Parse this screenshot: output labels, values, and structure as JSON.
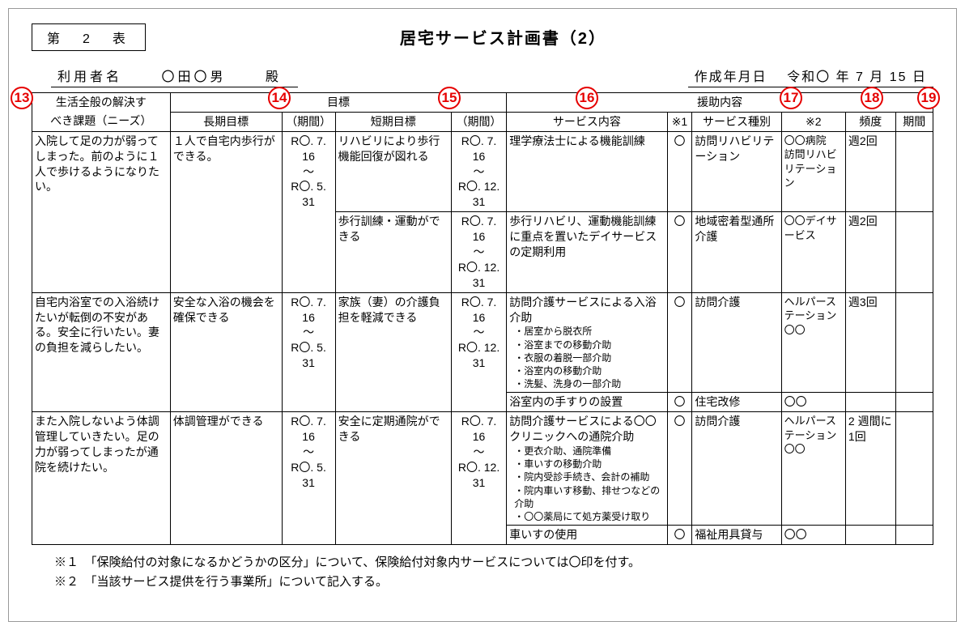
{
  "header": {
    "table_number": "第　2　表",
    "title": "居宅サービス計画書（2）",
    "user_label": "利用者名",
    "user_name": "〇田〇男",
    "honorific": "殿",
    "date_label": "作成年月日",
    "date_value": "令和〇 年 7 月 15 日"
  },
  "cols": {
    "needs_l1": "生活全般の解決す",
    "needs_l2": "べき課題（ニーズ）",
    "goals": "目標",
    "long_goal": "長期目標",
    "period": "（期間）",
    "short_goal": "短期目標",
    "assist": "援助内容",
    "svc_content": "サービス内容",
    "m1": "※1",
    "svc_kind": "サービス種別",
    "m2": "※2",
    "freq": "頻度",
    "term": "期間"
  },
  "periods": {
    "long": "R〇. 7. 16\n～\nR〇. 5. 31",
    "short": "R〇. 7. 16\n～\nR〇. 12. 31"
  },
  "rows": {
    "r1": {
      "needs": "入院して足の力が弱ってしまった。前のように１人で歩けるようになりたい。",
      "long_goal": "１人で自宅内歩行ができる。",
      "s1": {
        "short_goal": "リハビリにより歩行機能回復が図れる",
        "svc": "理学療法士による機能訓練",
        "m1": "〇",
        "kind": "訪問リハビリテーション",
        "m2": "〇〇病院\n訪問リハビリテーション",
        "freq": "週2回"
      },
      "s2": {
        "short_goal": "歩行訓練・運動ができる",
        "svc": "歩行リハビリ、運動機能訓練に重点を置いたデイサービスの定期利用",
        "m1": "〇",
        "kind": "地域密着型通所介護",
        "m2": "〇〇デイサービス",
        "freq": "週2回"
      }
    },
    "r2": {
      "needs": "自宅内浴室での入浴続けたいが転倒の不安がある。安全に行いたい。妻の負担を減らしたい。",
      "long_goal": "安全な入浴の機会を確保できる",
      "s1": {
        "short_goal": "家族（妻）の介護負担を軽減できる",
        "svc_main": "訪問介護サービスによる入浴介助",
        "bullets": [
          "居室から脱衣所",
          "浴室までの移動介助",
          "衣服の着脱一部介助",
          "浴室内の移動介助",
          "洗髪、洗身の一部介助"
        ],
        "m1": "〇",
        "kind": "訪問介護",
        "m2": "ヘルパーステーション〇〇",
        "freq": "週3回"
      },
      "s2": {
        "svc": "浴室内の手すりの設置",
        "m1": "〇",
        "kind": "住宅改修",
        "m2": "〇〇"
      }
    },
    "r3": {
      "needs": "また入院しないよう体調管理していきたい。足の力が弱ってしまったが通院を続けたい。",
      "long_goal": "体調管理ができる",
      "s1": {
        "short_goal": "安全に定期通院ができる",
        "svc_main": "訪問介護サービスによる〇〇クリニックへの通院介助",
        "bullets": [
          "更衣介助、通院準備",
          "車いすの移動介助",
          "院内受診手続き、会計の補助",
          "院内車いす移動、排せつなどの介助",
          "〇〇薬局にて処方薬受け取り"
        ],
        "m1": "〇",
        "kind": "訪問介護",
        "m2": "ヘルパーステーション〇〇",
        "freq": "2 週間に1回"
      },
      "s2": {
        "svc": "車いすの使用",
        "m1": "〇",
        "kind": "福祉用具貸与",
        "m2": "〇〇"
      }
    }
  },
  "notes": {
    "n1": "※１　「保険給付の対象になるかどうかの区分」について、保険給付対象内サービスについては〇印を付す。",
    "n2": "※２　「当該サービス提供を行う事業所」について記入する。"
  },
  "annotations": {
    "13": "13",
    "14": "14",
    "15": "15",
    "16": "16",
    "17": "17",
    "18": "18",
    "19": "19"
  }
}
